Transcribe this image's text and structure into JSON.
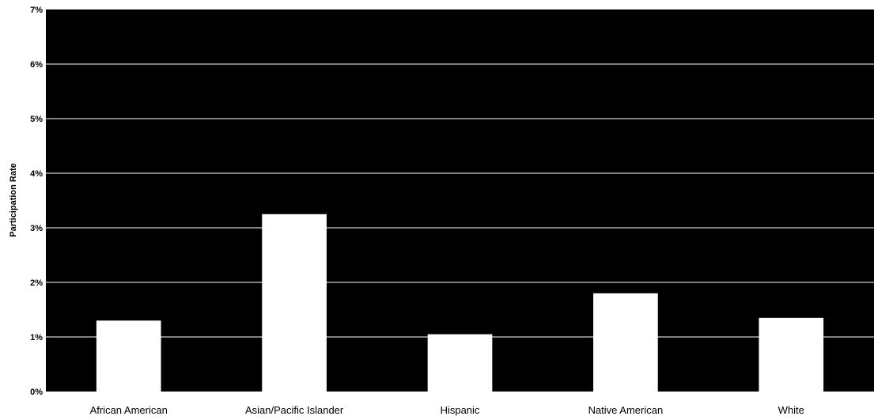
{
  "chart_data": {
    "type": "bar",
    "title": "",
    "xlabel": "",
    "ylabel": "Participation Rate",
    "categories": [
      "African American",
      "Asian/Pacific Islander",
      "Hispanic",
      "Native American",
      "White"
    ],
    "values": [
      1.3,
      3.25,
      1.05,
      1.8,
      1.35
    ],
    "value_unit": "%",
    "ylim": [
      0,
      7
    ],
    "yticks": [
      0,
      1,
      2,
      3,
      4,
      5,
      6,
      7
    ],
    "ytick_labels": [
      "0%",
      "1%",
      "2%",
      "3%",
      "4%",
      "5%",
      "6%",
      "7%"
    ],
    "grid": true,
    "legend": "none",
    "colors": {
      "plot_background": "#000000",
      "bar": "#ffffff",
      "gridline": "#ffffff",
      "text": "#000000"
    }
  }
}
